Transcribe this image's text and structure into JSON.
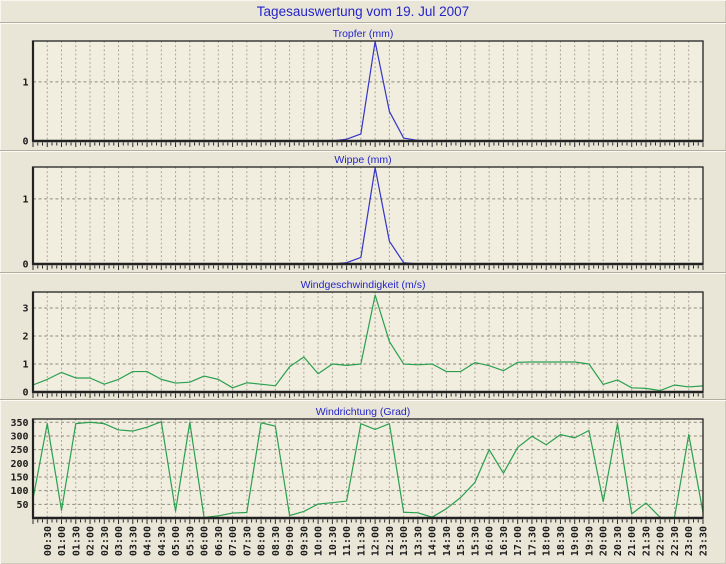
{
  "header": {
    "title": "Tagesauswertung vom 19. Jul 2007"
  },
  "colors": {
    "page_background": "#e9e6d7",
    "plot_background": "#f1eee0",
    "axis": "#222222",
    "grid": "#a5a193",
    "title_blue": "#2424ca",
    "rain_line_blue": "#3434c8",
    "wind_line_green": "#2aa04e"
  },
  "chart_data": {
    "type": "line",
    "grid": true,
    "legend": "none",
    "shared_x": {
      "start": "00:00",
      "step_minutes": 30,
      "n_points": 48,
      "tick_labels": [
        "00:30",
        "01:00",
        "01:30",
        "02:00",
        "02:30",
        "03:00",
        "03:30",
        "04:00",
        "04:30",
        "05:00",
        "05:30",
        "06:00",
        "06:30",
        "07:00",
        "07:30",
        "08:00",
        "08:30",
        "09:00",
        "09:30",
        "10:00",
        "10:30",
        "11:00",
        "11:30",
        "12:00",
        "12:30",
        "13:00",
        "13:30",
        "14:00",
        "14:30",
        "15:00",
        "15:30",
        "16:00",
        "16:30",
        "17:00",
        "17:30",
        "18:00",
        "18:30",
        "19:00",
        "19:30",
        "20:00",
        "20:30",
        "21:00",
        "21:30",
        "22:00",
        "22:30",
        "23:00",
        "23:30"
      ],
      "labels_rotated_vertical": true,
      "labels_shown_only_on_last_chart": true
    },
    "charts": [
      {
        "title": "Tropfer (mm)",
        "unit": "mm",
        "line_color": "#3434c8",
        "ylim": [
          0,
          1.69
        ],
        "yticks": [
          0,
          1
        ],
        "values": [
          0,
          0,
          0,
          0,
          0,
          0,
          0,
          0,
          0,
          0,
          0,
          0,
          0,
          0,
          0,
          0,
          0,
          0,
          0,
          0,
          0,
          0,
          0.03,
          0.12,
          1.68,
          0.5,
          0.05,
          0.01,
          0,
          0,
          0,
          0,
          0,
          0,
          0,
          0,
          0,
          0,
          0,
          0,
          0,
          0,
          0,
          0,
          0,
          0,
          0,
          0
        ]
      },
      {
        "title": "Wippe (mm)",
        "unit": "mm",
        "line_color": "#3434c8",
        "ylim": [
          0,
          1.49
        ],
        "yticks": [
          0,
          1
        ],
        "values": [
          0,
          0,
          0,
          0,
          0,
          0,
          0,
          0,
          0,
          0,
          0,
          0,
          0,
          0,
          0,
          0,
          0,
          0,
          0,
          0,
          0,
          0,
          0.02,
          0.1,
          1.48,
          0.35,
          0.02,
          0,
          0,
          0,
          0,
          0,
          0,
          0,
          0,
          0,
          0,
          0,
          0,
          0,
          0,
          0,
          0,
          0,
          0,
          0,
          0,
          0
        ]
      },
      {
        "title": "Windgeschwindigkeit (m/s)",
        "unit": "m/s",
        "line_color": "#2aa04e",
        "ylim": [
          0,
          3.57
        ],
        "yticks": [
          0,
          1,
          2,
          3
        ],
        "values": [
          0.25,
          0.45,
          0.7,
          0.5,
          0.5,
          0.28,
          0.45,
          0.73,
          0.73,
          0.45,
          0.32,
          0.35,
          0.57,
          0.45,
          0.15,
          0.33,
          0.28,
          0.22,
          0.9,
          1.25,
          0.65,
          1.0,
          0.95,
          1.0,
          3.46,
          1.8,
          1.0,
          0.97,
          1.0,
          0.73,
          0.73,
          1.05,
          0.94,
          0.76,
          1.06,
          1.07,
          1.07,
          1.07,
          1.07,
          1.0,
          0.27,
          0.43,
          0.15,
          0.13,
          0.05,
          0.25,
          0.18,
          0.22
        ]
      },
      {
        "title": "Windrichtung (Grad)",
        "unit": "Grad",
        "line_color": "#2aa04e",
        "ylim": [
          0,
          362
        ],
        "yticks": [
          50,
          100,
          150,
          200,
          250,
          300,
          350
        ],
        "show_x_labels": true,
        "values": [
          70,
          345,
          28,
          345,
          350,
          345,
          322,
          318,
          332,
          352,
          25,
          350,
          2,
          8,
          18,
          20,
          348,
          336,
          9,
          24,
          51,
          56,
          62,
          345,
          324,
          345,
          21,
          19,
          3,
          34,
          75,
          130,
          250,
          164,
          258,
          299,
          268,
          305,
          293,
          320,
          60,
          345,
          15,
          55,
          2,
          2,
          305,
          20
        ]
      }
    ]
  }
}
